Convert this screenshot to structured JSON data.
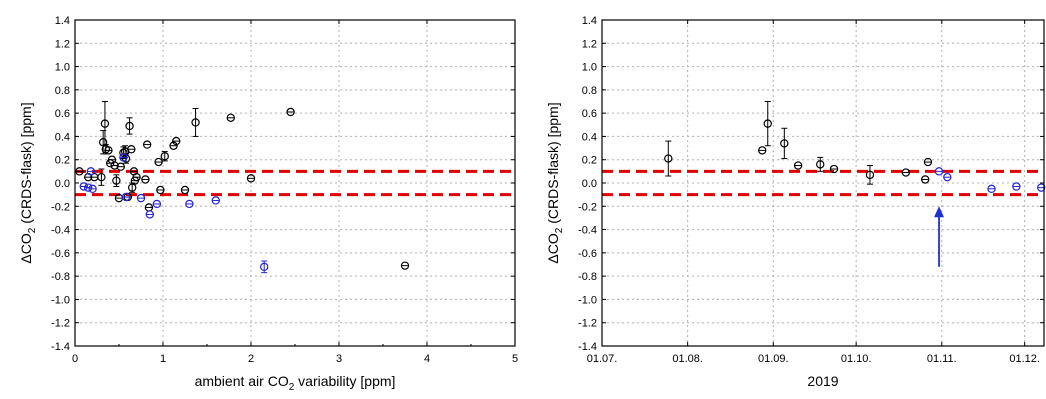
{
  "chart_data": [
    {
      "type": "scatter",
      "title": "",
      "xlabel": "ambient air CO2 variability [ppm]",
      "xlabel_parts": {
        "pre": "ambient air CO",
        "sub": "2",
        "post": " variability [ppm]"
      },
      "ylabel": "ΔCO2 (CRDS-flask) [ppm]",
      "ylabel_parts": {
        "pre": "ΔCO",
        "sub": "2",
        "post": " (CRDS-flask) [ppm]"
      },
      "xlim": [
        0,
        5
      ],
      "ylim": [
        -1.4,
        1.4
      ],
      "xticks": [
        "0",
        "1",
        "2",
        "3",
        "4",
        "5"
      ],
      "yticks": [
        "-1.4",
        "-1.2",
        "-1.0",
        "-0.8",
        "-0.6",
        "-0.4",
        "-0.2",
        "0.0",
        "0.2",
        "0.4",
        "0.6",
        "0.8",
        "1.0",
        "1.2",
        "1.4"
      ],
      "grid": true,
      "reference_lines": [
        0.1,
        -0.1
      ],
      "reference_color": "#e00000",
      "series": [
        {
          "color": "#000000",
          "points": [
            {
              "x": 0.05,
              "y": 0.1,
              "e": 0.01
            },
            {
              "x": 0.15,
              "y": 0.05,
              "e": 0.01
            },
            {
              "x": 0.22,
              "y": 0.05,
              "e": 0.01
            },
            {
              "x": 0.3,
              "y": 0.05,
              "e": 0.07
            },
            {
              "x": 0.32,
              "y": 0.35,
              "e": 0.1
            },
            {
              "x": 0.34,
              "y": 0.51,
              "e": 0.19
            },
            {
              "x": 0.35,
              "y": 0.29,
              "e": 0.04
            },
            {
              "x": 0.38,
              "y": 0.28,
              "e": 0.03
            },
            {
              "x": 0.4,
              "y": 0.17,
              "e": 0.03
            },
            {
              "x": 0.42,
              "y": 0.2,
              "e": 0.03
            },
            {
              "x": 0.45,
              "y": 0.15,
              "e": 0.03
            },
            {
              "x": 0.47,
              "y": 0.02,
              "e": 0.05
            },
            {
              "x": 0.5,
              "y": -0.13,
              "e": 0.01
            },
            {
              "x": 0.52,
              "y": 0.14,
              "e": 0.02
            },
            {
              "x": 0.55,
              "y": 0.26,
              "e": 0.05
            },
            {
              "x": 0.57,
              "y": 0.27,
              "e": 0.05
            },
            {
              "x": 0.58,
              "y": 0.21,
              "e": 0.04
            },
            {
              "x": 0.6,
              "y": -0.12,
              "e": 0.01
            },
            {
              "x": 0.62,
              "y": 0.49,
              "e": 0.07
            },
            {
              "x": 0.64,
              "y": 0.29,
              "e": 0.01
            },
            {
              "x": 0.65,
              "y": -0.04,
              "e": 0.04
            },
            {
              "x": 0.67,
              "y": 0.1,
              "e": 0.02
            },
            {
              "x": 0.68,
              "y": 0.02,
              "e": 0.02
            },
            {
              "x": 0.7,
              "y": 0.05,
              "e": 0.02
            },
            {
              "x": 0.8,
              "y": 0.03,
              "e": 0.02
            },
            {
              "x": 0.82,
              "y": 0.33,
              "e": 0.03
            },
            {
              "x": 0.84,
              "y": -0.21,
              "e": 0.03
            },
            {
              "x": 0.95,
              "y": 0.18,
              "e": 0.03
            },
            {
              "x": 0.97,
              "y": -0.06,
              "e": 0.02
            },
            {
              "x": 1.02,
              "y": 0.23,
              "e": 0.04
            },
            {
              "x": 1.12,
              "y": 0.32,
              "e": 0.02
            },
            {
              "x": 1.15,
              "y": 0.36,
              "e": 0.02
            },
            {
              "x": 1.25,
              "y": -0.06,
              "e": 0.02
            },
            {
              "x": 1.37,
              "y": 0.52,
              "e": 0.12
            },
            {
              "x": 1.77,
              "y": 0.56,
              "e": 0.01
            },
            {
              "x": 2.0,
              "y": 0.04,
              "e": 0.03
            },
            {
              "x": 2.45,
              "y": 0.61,
              "e": 0.01
            },
            {
              "x": 3.75,
              "y": -0.71,
              "e": 0.01
            }
          ]
        },
        {
          "color": "#2323d6",
          "points": [
            {
              "x": 0.1,
              "y": -0.03,
              "e": 0.02
            },
            {
              "x": 0.15,
              "y": -0.04,
              "e": 0.02
            },
            {
              "x": 0.18,
              "y": 0.1,
              "e": 0.02
            },
            {
              "x": 0.2,
              "y": -0.05,
              "e": 0.02
            },
            {
              "x": 0.55,
              "y": 0.22,
              "e": 0.03
            },
            {
              "x": 0.58,
              "y": -0.12,
              "e": 0.01
            },
            {
              "x": 0.75,
              "y": -0.13,
              "e": 0.01
            },
            {
              "x": 0.85,
              "y": -0.27,
              "e": 0.02
            },
            {
              "x": 0.93,
              "y": -0.18,
              "e": 0.02
            },
            {
              "x": 1.3,
              "y": -0.18,
              "e": 0.03
            },
            {
              "x": 1.6,
              "y": -0.15,
              "e": 0.03
            },
            {
              "x": 2.15,
              "y": -0.72,
              "e": 0.05
            }
          ]
        }
      ]
    },
    {
      "type": "scatter",
      "title": "",
      "xlabel": "2019",
      "ylabel": "ΔCO2 (CRDS-flask) [ppm]",
      "ylabel_parts": {
        "pre": "ΔCO",
        "sub": "2",
        "post": " (CRDS-flask) [ppm]"
      },
      "xlim": [
        "2019-07-01",
        "2019-12-08"
      ],
      "xticks": [
        "01.07.",
        "01.08.",
        "01.09.",
        "01.10.",
        "01.11.",
        "01.12."
      ],
      "xtick_dates": [
        "2019-07-01",
        "2019-08-01",
        "2019-09-01",
        "2019-10-01",
        "2019-11-01",
        "2019-12-01"
      ],
      "ylim": [
        -1.4,
        1.4
      ],
      "yticks": [
        "-1.4",
        "-1.2",
        "-1.0",
        "-0.8",
        "-0.6",
        "-0.4",
        "-0.2",
        "0.0",
        "0.2",
        "0.4",
        "0.6",
        "0.8",
        "1.0",
        "1.2",
        "1.4"
      ],
      "grid": true,
      "reference_lines": [
        0.1,
        -0.1
      ],
      "reference_color": "#e00000",
      "arrow": {
        "x": "2019-10-31",
        "y_from": -0.72,
        "y_to": -0.2,
        "color": "#1f2fd6"
      },
      "series": [
        {
          "color": "#000000",
          "points": [
            {
              "x": "2019-07-25",
              "y": 0.21,
              "e": 0.15
            },
            {
              "x": "2019-08-28",
              "y": 0.28,
              "e": 0.01
            },
            {
              "x": "2019-08-30",
              "y": 0.51,
              "e": 0.19
            },
            {
              "x": "2019-09-05",
              "y": 0.34,
              "e": 0.13
            },
            {
              "x": "2019-09-10",
              "y": 0.15,
              "e": 0.03
            },
            {
              "x": "2019-09-18",
              "y": 0.16,
              "e": 0.06
            },
            {
              "x": "2019-09-23",
              "y": 0.12,
              "e": 0.03
            },
            {
              "x": "2019-10-06",
              "y": 0.07,
              "e": 0.08
            },
            {
              "x": "2019-10-19",
              "y": 0.09,
              "e": 0.01
            },
            {
              "x": "2019-10-26",
              "y": 0.03,
              "e": 0.01
            },
            {
              "x": "2019-10-27",
              "y": 0.18,
              "e": 0.02
            }
          ]
        },
        {
          "color": "#2323d6",
          "points": [
            {
              "x": "2019-10-31",
              "y": 0.1,
              "e": 0.03
            },
            {
              "x": "2019-11-03",
              "y": 0.05,
              "e": 0.03
            },
            {
              "x": "2019-11-19",
              "y": -0.05,
              "e": 0.03
            },
            {
              "x": "2019-11-28",
              "y": -0.03,
              "e": 0.02
            },
            {
              "x": "2019-12-07",
              "y": -0.04,
              "e": 0.03
            }
          ]
        }
      ]
    }
  ]
}
